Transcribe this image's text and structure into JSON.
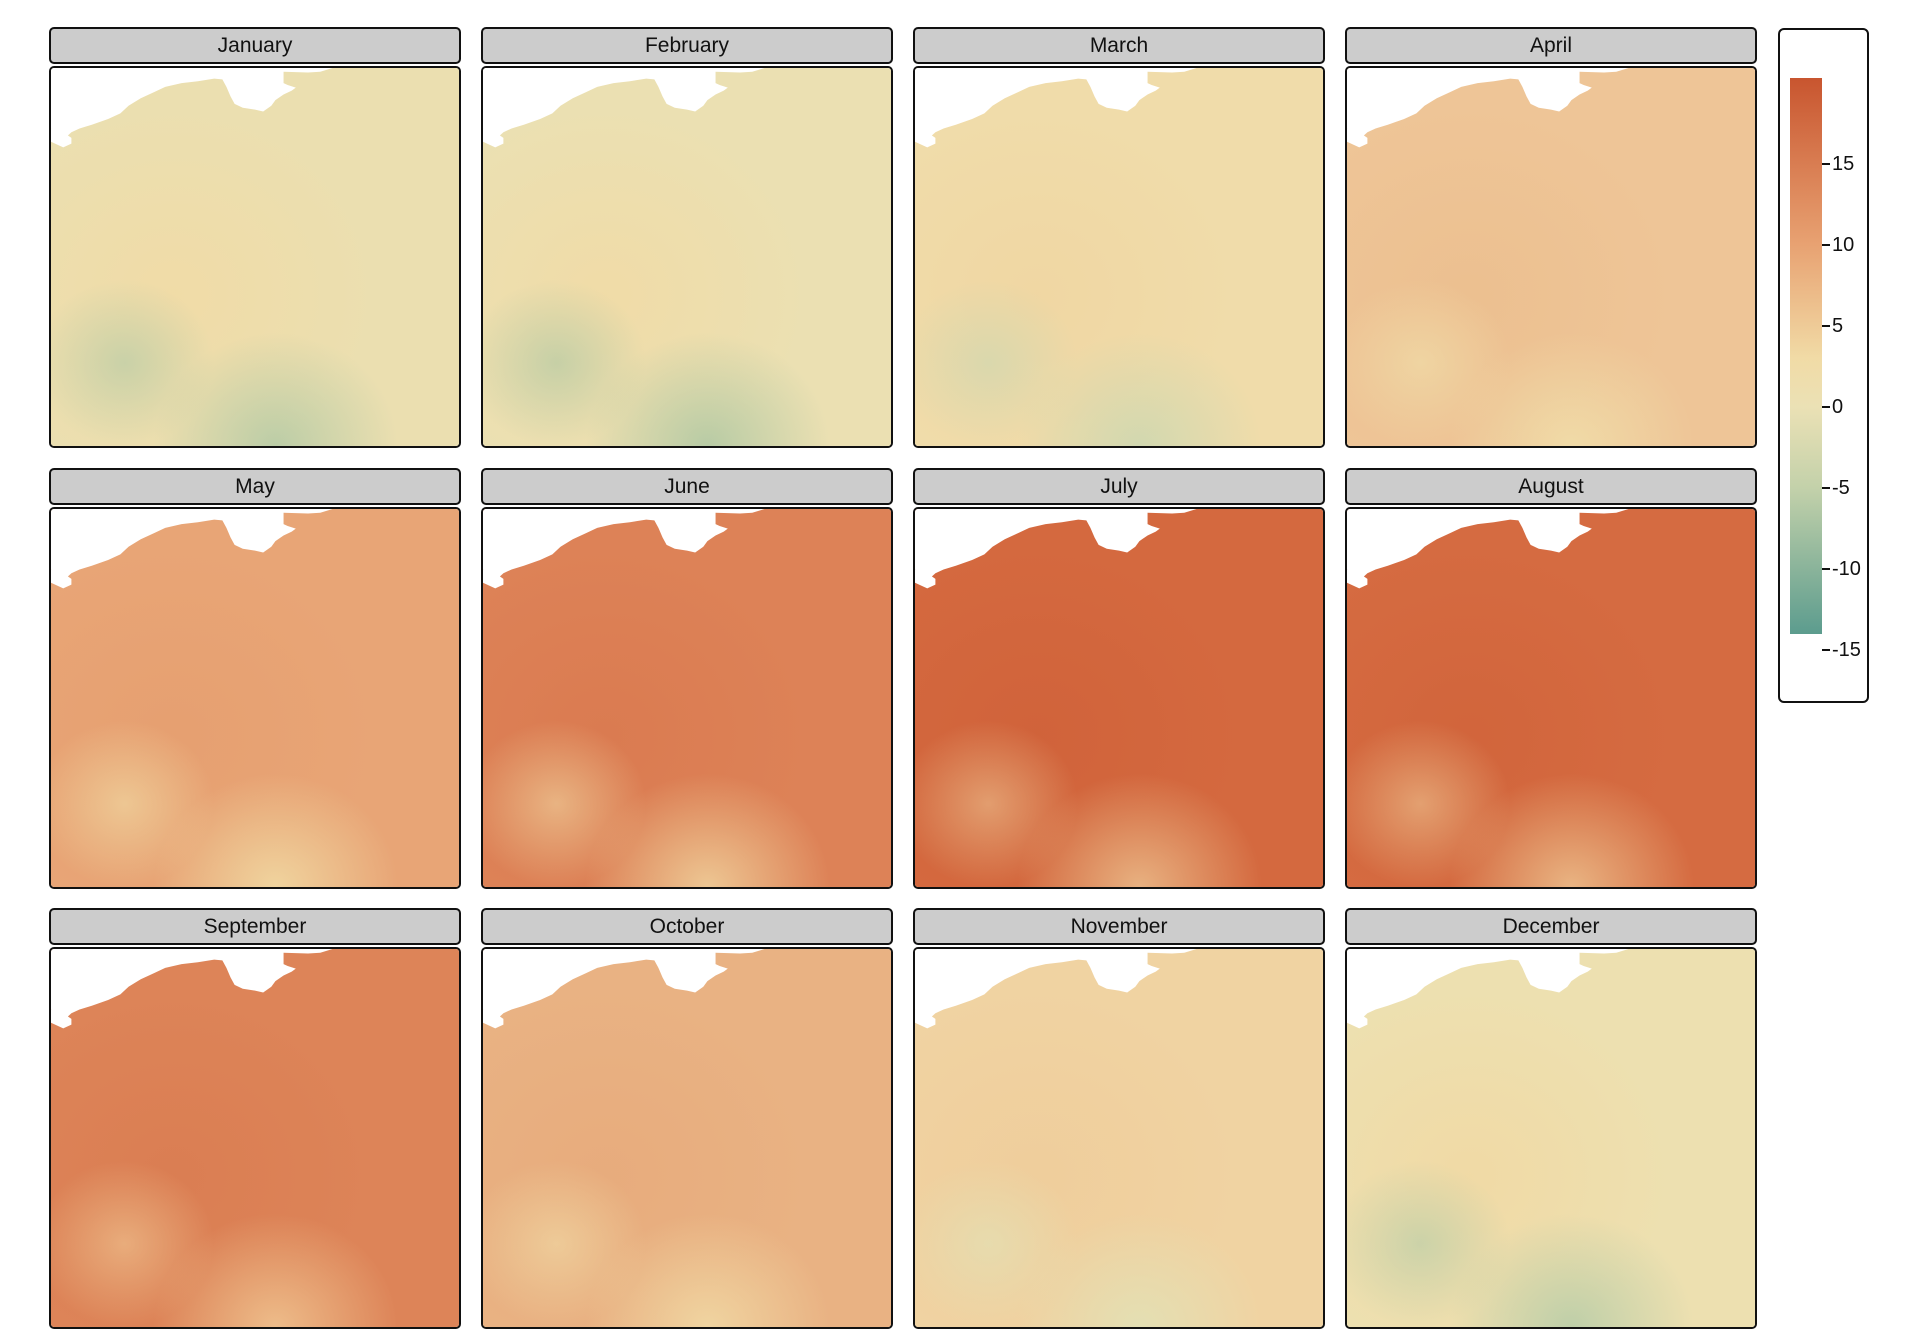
{
  "chart_data": {
    "type": "heatmap",
    "title": "",
    "facets": [
      "January",
      "February",
      "March",
      "April",
      "May",
      "June",
      "July",
      "August",
      "September",
      "October",
      "November",
      "December"
    ],
    "colorbar": {
      "ticks": [
        15,
        10,
        5,
        0,
        -5,
        -10,
        -15
      ],
      "tick_labels": [
        "15",
        "10",
        "5",
        "0",
        "-5",
        "-10",
        "-15"
      ],
      "limits": [
        -14,
        20.3
      ],
      "stops": [
        {
          "value": 20.3,
          "color": "#c8552f"
        },
        {
          "value": 10,
          "color": "#e8a272"
        },
        {
          "value": 3,
          "color": "#f1dba6"
        },
        {
          "value": 0,
          "color": "#ebe1b5"
        },
        {
          "value": -5,
          "color": "#c3d1aa"
        },
        {
          "value": -14,
          "color": "#5c9c8e"
        }
      ]
    },
    "monthly_colors": [
      {
        "month": "January",
        "base": "#ebdfb0",
        "warm": "#f1dba6",
        "high": "#b9cca6"
      },
      {
        "month": "February",
        "base": "#ebe0b2",
        "warm": "#f1dba6",
        "high": "#b5caa4"
      },
      {
        "month": "March",
        "base": "#f0dcaa",
        "warm": "#f0d6a2",
        "high": "#d0d8b0"
      },
      {
        "month": "April",
        "base": "#eec597",
        "warm": "#ecbf8f",
        "high": "#f0dca8"
      },
      {
        "month": "May",
        "base": "#e8a576",
        "warm": "#e69f70",
        "high": "#f0d6a0"
      },
      {
        "month": "June",
        "base": "#dd8257",
        "warm": "#da7a50",
        "high": "#eeca96"
      },
      {
        "month": "July",
        "base": "#d4693f",
        "warm": "#d0623a",
        "high": "#e9b584"
      },
      {
        "month": "August",
        "base": "#d56b41",
        "warm": "#d1643b",
        "high": "#eab886"
      },
      {
        "month": "September",
        "base": "#dd8458",
        "warm": "#da7d52",
        "high": "#eebf8c"
      },
      {
        "month": "October",
        "base": "#e9b283",
        "warm": "#e7ab7c",
        "high": "#f0d6a2"
      },
      {
        "month": "November",
        "base": "#f0d3a2",
        "warm": "#efcd9b",
        "high": "#e3e0b4"
      },
      {
        "month": "December",
        "base": "#ede0b0",
        "warm": "#f1d9a4",
        "high": "#bccea8"
      }
    ]
  }
}
